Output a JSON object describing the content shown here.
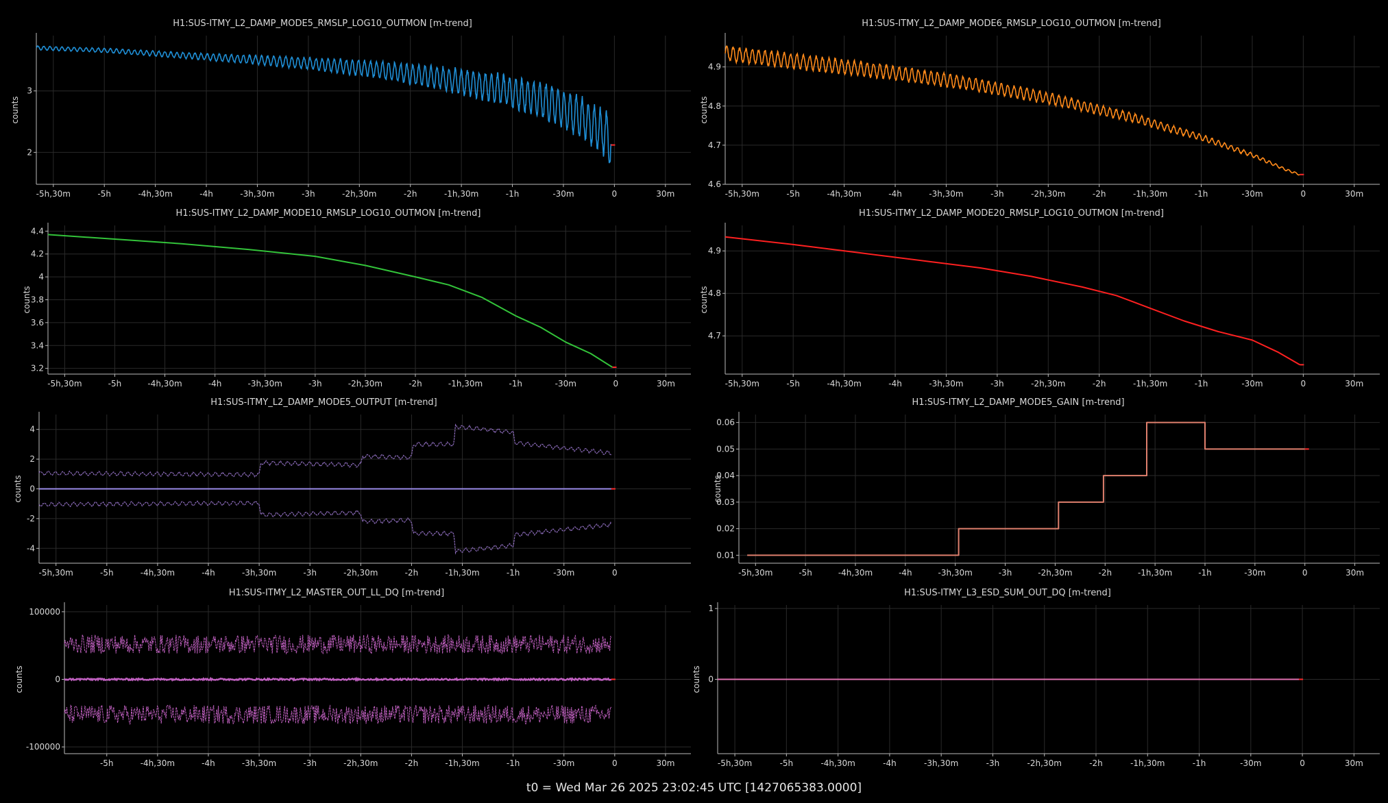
{
  "footer": {
    "t0": "t0 = Wed Mar 26 2025 23:02:45 UTC [1427065383.0000]"
  },
  "colors": {
    "background": "#000000",
    "grid": "#2a2a2a",
    "axis": "#bbbbbb",
    "text": "#d8d8d8",
    "endmark": "#ff2a2a"
  },
  "chart_data": [
    {
      "type": "line",
      "title": "H1:SUS-ITMY_L2_DAMP_MODE5_RMSLP_LOG10_OUTMON [m-trend]",
      "ylabel": "counts",
      "xlabel": "",
      "x_ticks": [
        "-5h,30m",
        "-5h",
        "-4h,30m",
        "-4h",
        "-3h,30m",
        "-3h",
        "-2h,30m",
        "-2h",
        "-1h,30m",
        "-1h",
        "-30m",
        "0",
        "30m"
      ],
      "x_tick_values": [
        -330,
        -300,
        -270,
        -240,
        -210,
        -180,
        -150,
        -120,
        -90,
        -60,
        -30,
        0,
        30
      ],
      "xlim": [
        -340,
        45
      ],
      "ylim": [
        1.48,
        3.9
      ],
      "y_ticks": [
        2,
        3
      ],
      "y_tick_labels": [
        "2",
        "3"
      ],
      "grid": true,
      "color": "#1f8fd6",
      "shape": "oscill_decay",
      "series": [
        {
          "x": [
            -340,
            -300,
            -260,
            -220,
            -180,
            -140,
            -100,
            -70,
            -40,
            -20,
            -5,
            -2
          ],
          "values": [
            3.7,
            3.66,
            3.59,
            3.52,
            3.45,
            3.35,
            3.2,
            3.05,
            2.82,
            2.58,
            2.3,
            2.12
          ],
          "amplitude_start": 0.03,
          "amplitude_end": 0.35,
          "cycles": 95
        }
      ]
    },
    {
      "type": "line",
      "title": "H1:SUS-ITMY_L2_DAMP_MODE6_RMSLP_LOG10_OUTMON [m-trend]",
      "ylabel": "counts",
      "xlabel": "",
      "x_ticks": [
        "-5h,30m",
        "-5h",
        "-4h,30m",
        "-4h",
        "-3h,30m",
        "-3h",
        "-2h,30m",
        "-2h",
        "-1h,30m",
        "-1h",
        "-30m",
        "0",
        "30m"
      ],
      "x_tick_values": [
        -330,
        -300,
        -270,
        -240,
        -210,
        -180,
        -150,
        -120,
        -90,
        -60,
        -30,
        0,
        30
      ],
      "xlim": [
        -340,
        45
      ],
      "ylim": [
        4.6,
        4.98
      ],
      "y_ticks": [
        4.6,
        4.7,
        4.8,
        4.9
      ],
      "y_tick_labels": [
        "4.6",
        "4.7",
        "4.8",
        "4.9"
      ],
      "grid": true,
      "color": "#ff8a1a",
      "shape": "oscill_decay",
      "series": [
        {
          "x": [
            -340,
            -300,
            -250,
            -200,
            -150,
            -100,
            -60,
            -30,
            -10,
            -2
          ],
          "values": [
            4.935,
            4.915,
            4.89,
            4.86,
            4.82,
            4.77,
            4.72,
            4.675,
            4.637,
            4.625
          ],
          "amplitude_start": 0.018,
          "amplitude_end": 0.002,
          "cycles": 90
        }
      ]
    },
    {
      "type": "line",
      "title": "H1:SUS-ITMY_L2_DAMP_MODE10_RMSLP_LOG10_OUTMON [m-trend]",
      "ylabel": "counts",
      "xlabel": "",
      "x_ticks": [
        "-5h,30m",
        "-5h",
        "-4h,30m",
        "-4h",
        "-3h,30m",
        "-3h",
        "-2h,30m",
        "-2h",
        "-1h,30m",
        "-1h",
        "-30m",
        "0",
        "30m"
      ],
      "x_tick_values": [
        -330,
        -300,
        -270,
        -240,
        -210,
        -180,
        -150,
        -120,
        -90,
        -60,
        -30,
        0,
        30
      ],
      "xlim": [
        -340,
        45
      ],
      "ylim": [
        3.15,
        4.45
      ],
      "y_ticks": [
        3.2,
        3.4,
        3.6,
        3.8,
        4,
        4.2,
        4.4
      ],
      "y_tick_labels": [
        "3.2",
        "3.4",
        "3.6",
        "3.8",
        "4",
        "4.2",
        "4.4"
      ],
      "grid": true,
      "color": "#33c43a",
      "shape": "line",
      "series": [
        {
          "x": [
            -340,
            -300,
            -260,
            -220,
            -180,
            -150,
            -120,
            -100,
            -80,
            -60,
            -45,
            -30,
            -15,
            -2
          ],
          "values": [
            4.37,
            4.33,
            4.29,
            4.24,
            4.18,
            4.1,
            4.0,
            3.93,
            3.82,
            3.66,
            3.56,
            3.43,
            3.33,
            3.21
          ]
        }
      ]
    },
    {
      "type": "line",
      "title": "H1:SUS-ITMY_L2_DAMP_MODE20_RMSLP_LOG10_OUTMON [m-trend]",
      "ylabel": "counts",
      "xlabel": "",
      "x_ticks": [
        "-5h,30m",
        "-5h",
        "-4h,30m",
        "-4h",
        "-3h,30m",
        "-3h",
        "-2h,30m",
        "-2h",
        "-1h,30m",
        "-1h",
        "-30m",
        "0",
        "30m"
      ],
      "x_tick_values": [
        -330,
        -300,
        -270,
        -240,
        -210,
        -180,
        -150,
        -120,
        -90,
        -60,
        -30,
        0,
        30
      ],
      "xlim": [
        -340,
        45
      ],
      "ylim": [
        4.61,
        4.96
      ],
      "y_ticks": [
        4.7,
        4.8,
        4.9
      ],
      "y_tick_labels": [
        "4.7",
        "4.8",
        "4.9"
      ],
      "grid": true,
      "color": "#ff2020",
      "shape": "line",
      "series": [
        {
          "x": [
            -340,
            -300,
            -260,
            -220,
            -190,
            -160,
            -130,
            -110,
            -90,
            -70,
            -50,
            -30,
            -15,
            -2
          ],
          "values": [
            4.933,
            4.915,
            4.895,
            4.875,
            4.86,
            4.84,
            4.815,
            4.795,
            4.765,
            4.735,
            4.71,
            4.69,
            4.662,
            4.632
          ]
        }
      ]
    },
    {
      "type": "line",
      "title": "H1:SUS-ITMY_L2_DAMP_MODE5_OUTPUT [m-trend]",
      "ylabel": "counts",
      "xlabel": "",
      "x_ticks": [
        "-5h,30m",
        "-5h",
        "-4h,30m",
        "-4h",
        "-3h,30m",
        "-3h",
        "-2h,30m",
        "-2h",
        "-1h,30m",
        "-1h",
        "-30m",
        "0"
      ],
      "x_tick_values": [
        -330,
        -300,
        -270,
        -240,
        -210,
        -180,
        -150,
        -120,
        -90,
        -60,
        -30,
        0
      ],
      "xlim": [
        -340,
        45
      ],
      "ylim": [
        -5,
        5
      ],
      "y_ticks": [
        -4,
        -2,
        0,
        2,
        4
      ],
      "y_tick_labels": [
        "-4",
        "-2",
        "0",
        "2",
        "4"
      ],
      "grid": true,
      "color": "#9a8ae8",
      "shape": "envelope",
      "series": [
        {
          "name": "",
          "x": [
            -340,
            -210,
            -209,
            -150,
            -149,
            -120,
            -119,
            -95,
            -94,
            -60,
            -59,
            -2
          ],
          "values": [
            1.05,
            0.95,
            1.75,
            1.6,
            2.2,
            2.1,
            3.0,
            3.0,
            4.2,
            3.8,
            3.1,
            2.4
          ]
        },
        {
          "name": "",
          "x": [
            -340,
            -210,
            -209,
            -150,
            -149,
            -120,
            -119,
            -95,
            -94,
            -60,
            -59,
            -2
          ],
          "values": [
            -1.05,
            -0.95,
            -1.75,
            -1.6,
            -2.2,
            -2.1,
            -3.0,
            -3.0,
            -4.2,
            -3.8,
            -3.1,
            -2.4
          ]
        },
        {
          "name": "",
          "x": [
            -340,
            -2
          ],
          "values": [
            0,
            0
          ]
        }
      ]
    },
    {
      "type": "line",
      "title": "H1:SUS-ITMY_L2_DAMP_MODE5_GAIN [m-trend]",
      "ylabel": "counts",
      "xlabel": "",
      "x_ticks": [
        "-5h,30m",
        "-5h",
        "-4h,30m",
        "-4h",
        "-3h,30m",
        "-3h",
        "-2h,30m",
        "-2h",
        "-1h,30m",
        "-1h",
        "-30m",
        "0",
        "30m"
      ],
      "x_tick_values": [
        -330,
        -300,
        -270,
        -240,
        -210,
        -180,
        -150,
        -120,
        -90,
        -60,
        -30,
        0,
        30
      ],
      "xlim": [
        -340,
        45
      ],
      "ylim": [
        0.007,
        0.063
      ],
      "y_ticks": [
        0.01,
        0.02,
        0.03,
        0.04,
        0.05,
        0.06
      ],
      "y_tick_labels": [
        "0.01",
        "0.02",
        "0.03",
        "0.04",
        "0.05",
        "0.06"
      ],
      "grid": true,
      "color": "#e0806e",
      "shape": "step",
      "series": [
        {
          "x": [
            -335,
            -208,
            -208,
            -148,
            -148,
            -121,
            -121,
            -95,
            -95,
            -60,
            -60,
            0
          ],
          "values": [
            0.01,
            0.01,
            0.02,
            0.02,
            0.03,
            0.03,
            0.04,
            0.04,
            0.06,
            0.06,
            0.05,
            0.05
          ]
        }
      ]
    },
    {
      "type": "line",
      "title": "H1:SUS-ITMY_L2_MASTER_OUT_LL_DQ [m-trend]",
      "ylabel": "counts",
      "xlabel": "",
      "x_ticks": [
        "-5h",
        "-4h,30m",
        "-4h",
        "-3h,30m",
        "-3h",
        "-2h,30m",
        "-2h",
        "-1h,30m",
        "-1h",
        "-30m",
        "0",
        "30m"
      ],
      "x_tick_values": [
        -300,
        -270,
        -240,
        -210,
        -180,
        -150,
        -120,
        -90,
        -60,
        -30,
        0,
        30
      ],
      "xlim": [
        -325,
        45
      ],
      "ylim": [
        -110000,
        110000
      ],
      "y_ticks": [
        -100000,
        0,
        100000
      ],
      "y_tick_labels": [
        "-100000",
        "0",
        "100000"
      ],
      "grid": true,
      "color": "#c060c0",
      "shape": "noise_envelope",
      "series": [
        {
          "name": "",
          "x": [
            -325,
            -2
          ],
          "values": [
            52000,
            52000
          ],
          "noise": 14000
        },
        {
          "name": "",
          "x": [
            -325,
            -2
          ],
          "values": [
            -52000,
            -52000
          ],
          "noise": 14000
        },
        {
          "name": "",
          "x": [
            -325,
            -2
          ],
          "values": [
            0,
            0
          ],
          "noise": 1200
        }
      ]
    },
    {
      "type": "line",
      "title": "H1:SUS-ITMY_L3_ESD_SUM_OUT_DQ [m-trend]",
      "ylabel": "counts",
      "xlabel": "",
      "x_ticks": [
        "-5h,30m",
        "-5h",
        "-4h,30m",
        "-4h",
        "-3h,30m",
        "-3h",
        "-2h,30m",
        "-2h",
        "-1h,30m",
        "-1h",
        "-30m",
        "0",
        "30m"
      ],
      "x_tick_values": [
        -330,
        -300,
        -270,
        -240,
        -210,
        -180,
        -150,
        -120,
        -90,
        -60,
        -30,
        0,
        30
      ],
      "xlim": [
        -340,
        45
      ],
      "ylim": [
        -1.05,
        1.05
      ],
      "y_ticks": [
        0,
        1
      ],
      "y_tick_labels": [
        "0",
        "1"
      ],
      "grid": true,
      "color": "#e070b0",
      "shape": "line",
      "series": [
        {
          "x": [
            -340,
            -2
          ],
          "values": [
            0,
            0
          ]
        }
      ]
    }
  ]
}
